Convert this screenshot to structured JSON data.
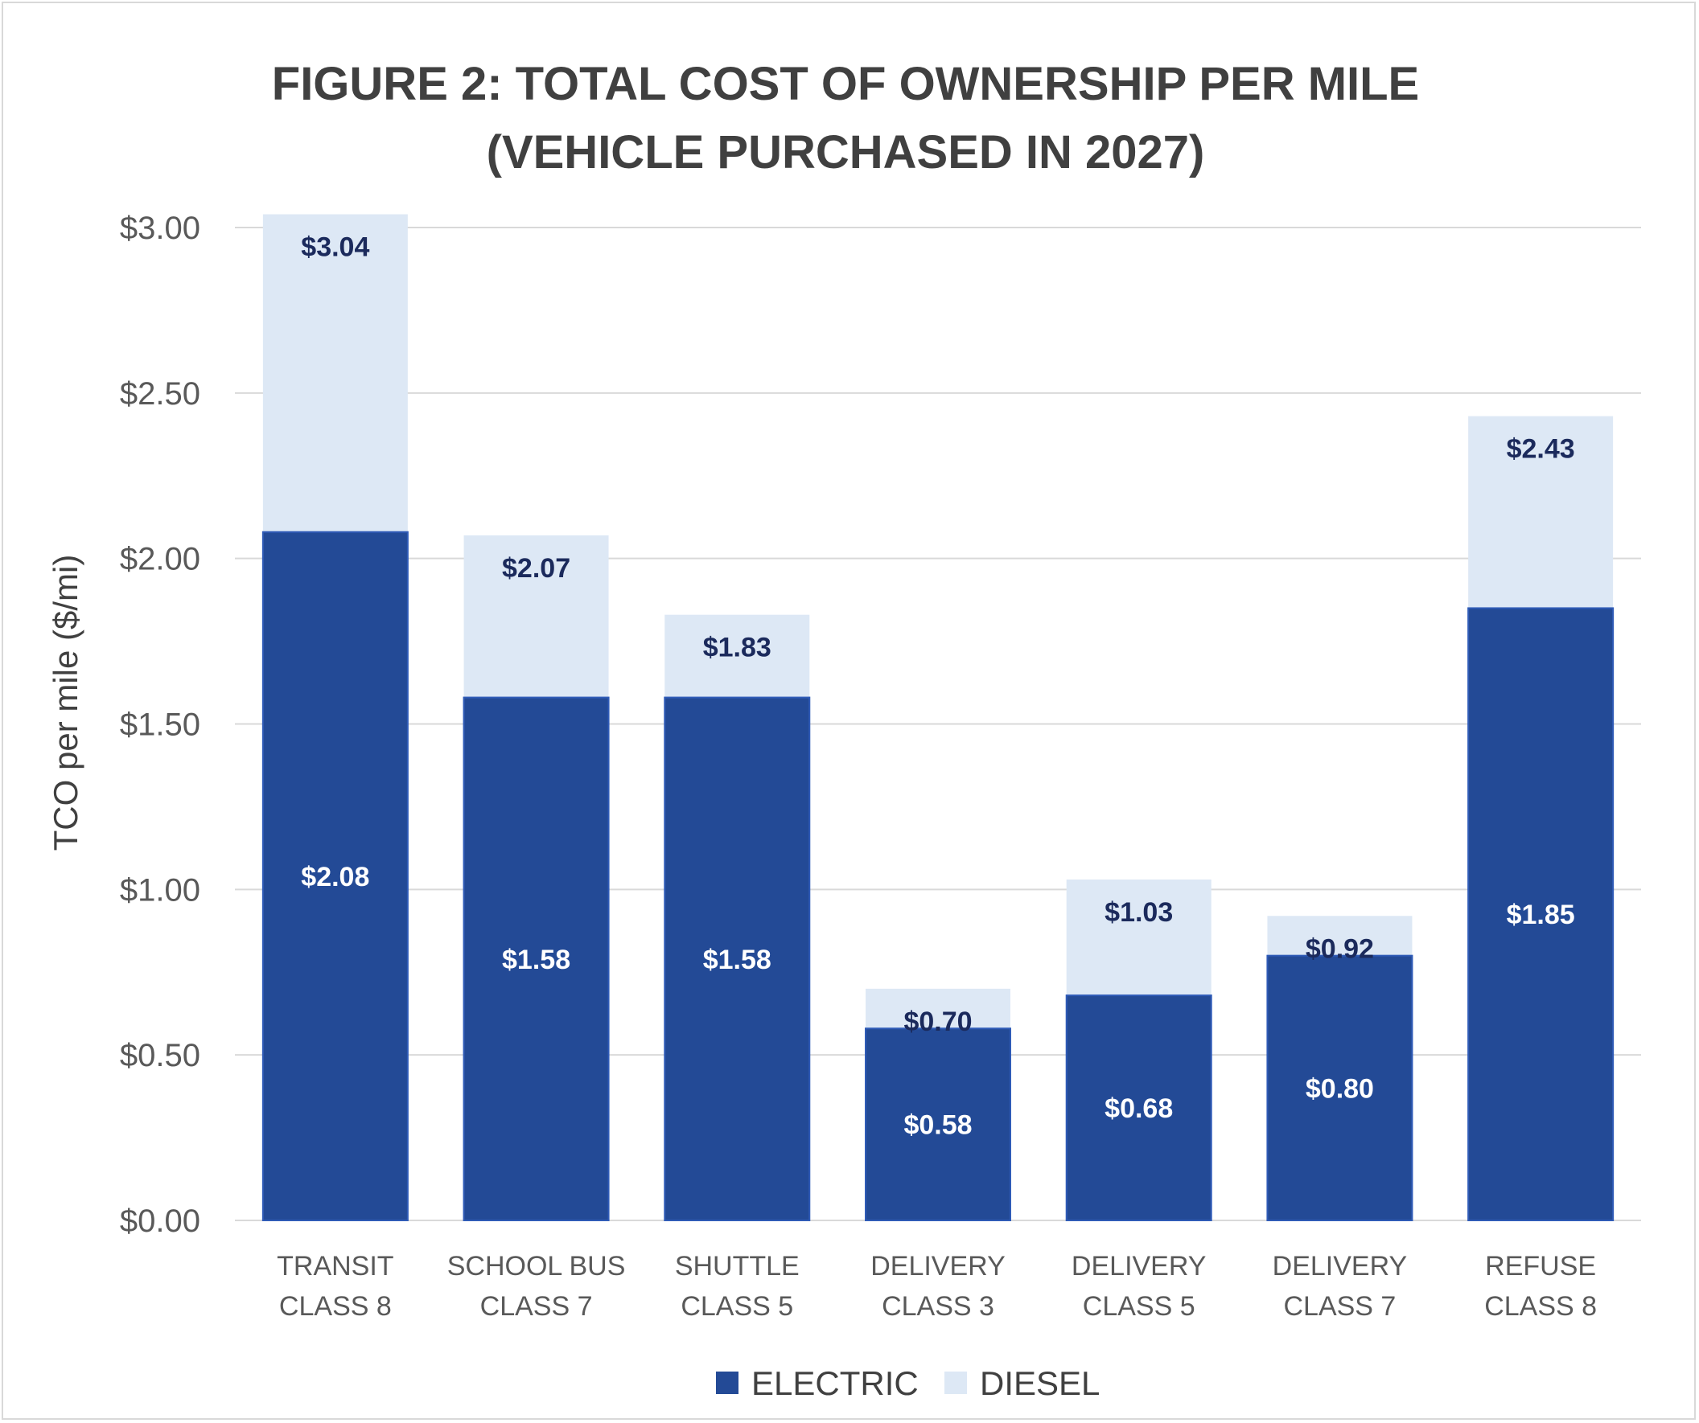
{
  "chart_data": {
    "type": "bar",
    "stacked": false,
    "overlapping": true,
    "title": "FIGURE 2: TOTAL COST OF OWNERSHIP PER MILE",
    "subtitle": "(VEHICLE PURCHASED IN 2027)",
    "xlabel": "",
    "ylabel": "TCO per mile ($/mi)",
    "ylim": [
      0,
      3.0
    ],
    "yticks": [
      0,
      0.5,
      1.0,
      1.5,
      2.0,
      2.5,
      3.0
    ],
    "ytick_labels": [
      "$0.00",
      "$0.50",
      "$1.00",
      "$1.50",
      "$2.00",
      "$2.50",
      "$3.00"
    ],
    "grid": true,
    "legend_position": "bottom",
    "categories": [
      [
        "TRANSIT",
        "CLASS 8"
      ],
      [
        "SCHOOL BUS",
        "CLASS 7"
      ],
      [
        "SHUTTLE",
        "CLASS 5"
      ],
      [
        "DELIVERY",
        "CLASS 3"
      ],
      [
        "DELIVERY",
        "CLASS 5"
      ],
      [
        "DELIVERY",
        "CLASS 7"
      ],
      [
        "REFUSE",
        "CLASS 8"
      ]
    ],
    "series": [
      {
        "name": "ELECTRIC",
        "color": "#234a96",
        "label_color": "#ffffff",
        "values": [
          2.08,
          1.58,
          1.58,
          0.58,
          0.68,
          0.8,
          1.85
        ],
        "labels": [
          "$2.08",
          "$1.58",
          "$1.58",
          "$0.58",
          "$0.68",
          "$0.80",
          "$1.85"
        ]
      },
      {
        "name": "DIESEL",
        "color": "#dde8f5",
        "label_color": "#1b2a5c",
        "values": [
          3.04,
          2.07,
          1.83,
          0.7,
          1.03,
          0.92,
          2.43
        ],
        "labels": [
          "$3.04",
          "$2.07",
          "$1.83",
          "$0.70",
          "$1.03",
          "$0.92",
          "$2.43"
        ]
      }
    ]
  }
}
